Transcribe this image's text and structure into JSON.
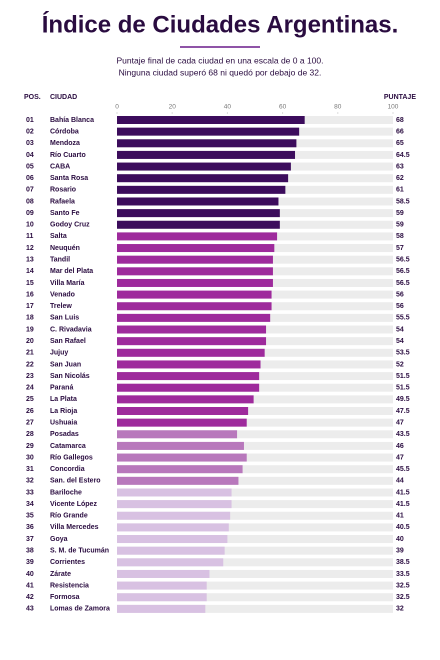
{
  "chart_data": {
    "type": "bar",
    "orientation": "horizontal",
    "title": "Índice de Ciudades Argentinas.",
    "subtitle": [
      "Puntaje final de cada ciudad en una escala de 0 a 100.",
      "Ninguna ciudad superó 68 ni quedó por debajo de 32."
    ],
    "column_headers": {
      "position": "POS.",
      "city": "CIUDAD",
      "score": "PUNTAJE"
    },
    "positions": [
      "01",
      "02",
      "03",
      "04",
      "05",
      "06",
      "07",
      "08",
      "09",
      "10",
      "11",
      "12",
      "13",
      "14",
      "15",
      "16",
      "17",
      "18",
      "19",
      "20",
      "21",
      "22",
      "23",
      "24",
      "25",
      "26",
      "27",
      "28",
      "29",
      "30",
      "31",
      "32",
      "33",
      "34",
      "35",
      "36",
      "37",
      "38",
      "39",
      "40",
      "41",
      "42",
      "43"
    ],
    "categories": [
      "Bahía Blanca",
      "Córdoba",
      "Mendoza",
      "Río Cuarto",
      "CABA",
      "Santa Rosa",
      "Rosario",
      "Rafaela",
      "Santo Fe",
      "Godoy Cruz",
      "Salta",
      "Neuquén",
      "Tandil",
      "Mar del Plata",
      "Villa María",
      "Venado",
      "Trelew",
      "San Luis",
      "C. Rivadavia",
      "San Rafael",
      "Jujuy",
      "San Juan",
      "San Nicolás",
      "Paraná",
      "La Plata",
      "La Rioja",
      "Ushuaia",
      "Posadas",
      "Catamarca",
      "Río Gallegos",
      "Concordia",
      "San. del Estero",
      "Bariloche",
      "Vicente López",
      "Río Grande",
      "Villa Mercedes",
      "Goya",
      "S. M. de Tucumán",
      "Corrientes",
      "Zárate",
      "Resistencia",
      "Formosa",
      "Lomas de Zamora"
    ],
    "values": [
      68,
      66,
      65,
      64.5,
      63,
      62,
      61,
      58.5,
      59,
      59,
      58,
      57,
      56.5,
      56.5,
      56.5,
      56,
      56,
      55.5,
      54,
      54,
      53.5,
      52,
      51.5,
      51.5,
      49.5,
      47.5,
      47,
      43.5,
      46,
      47,
      45.5,
      44,
      41.5,
      41.5,
      41,
      40.5,
      40,
      39,
      38.5,
      33.5,
      32.5,
      32.5,
      32
    ],
    "colors": [
      "#3c0c5c",
      "#3c0c5c",
      "#3c0c5c",
      "#3c0c5c",
      "#3c0c5c",
      "#3c0c5c",
      "#3c0c5c",
      "#3c0c5c",
      "#3c0c5c",
      "#3c0c5c",
      "#9e2a9c",
      "#9e2a9c",
      "#9e2a9c",
      "#9e2a9c",
      "#9e2a9c",
      "#9e2a9c",
      "#9e2a9c",
      "#9e2a9c",
      "#9e2a9c",
      "#9e2a9c",
      "#9e2a9c",
      "#9e2a9c",
      "#9e2a9c",
      "#9e2a9c",
      "#9e2a9c",
      "#9e2a9c",
      "#9e2a9c",
      "#b878bc",
      "#b878bc",
      "#b878bc",
      "#b878bc",
      "#b878bc",
      "#d8c1e2",
      "#d8c1e2",
      "#d8c1e2",
      "#d8c1e2",
      "#d8c1e2",
      "#d8c1e2",
      "#d8c1e2",
      "#d8c1e2",
      "#d8c1e2",
      "#d8c1e2",
      "#d8c1e2"
    ],
    "xlim": [
      0,
      100
    ],
    "xticks": [
      0,
      20,
      40,
      60,
      80,
      100
    ]
  }
}
